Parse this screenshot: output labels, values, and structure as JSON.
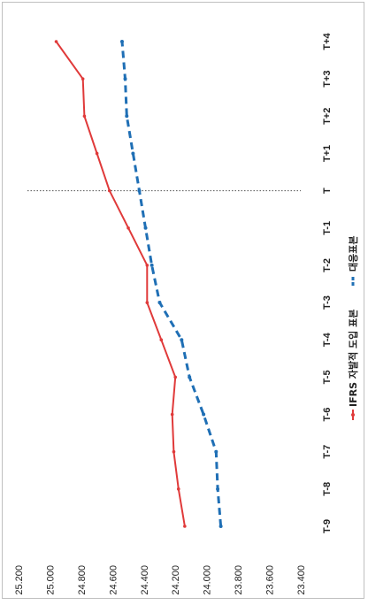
{
  "chart_data": {
    "type": "line",
    "orientation": "rotated-90",
    "categories": [
      "T-9",
      "T-8",
      "T-7",
      "T-6",
      "T-5",
      "T-4",
      "T-3",
      "T-2",
      "T-1",
      "T",
      "T+1",
      "T+2",
      "T+3",
      "T+4"
    ],
    "series": [
      {
        "name": "IFRS 자발적 도입 표본",
        "color": "#e03a3a",
        "style": "solid",
        "values": [
          24.14,
          24.18,
          24.21,
          24.22,
          24.2,
          24.29,
          24.38,
          24.38,
          24.5,
          24.62,
          24.7,
          24.78,
          24.79,
          24.96
        ]
      },
      {
        "name": "대응표본",
        "color": "#1f6fb5",
        "style": "dashed",
        "values": [
          23.91,
          23.93,
          23.94,
          24.02,
          24.11,
          24.16,
          24.3,
          24.35,
          24.39,
          24.43,
          24.47,
          24.51,
          24.52,
          24.54
        ]
      }
    ],
    "yticks": [
      "23.400",
      "23.600",
      "23.800",
      "24.000",
      "24.200",
      "24.400",
      "24.600",
      "24.800",
      "25.000",
      "25.200"
    ],
    "ylim": [
      23.4,
      25.2
    ],
    "reference_line_category": "T",
    "legend_position": "bottom"
  }
}
